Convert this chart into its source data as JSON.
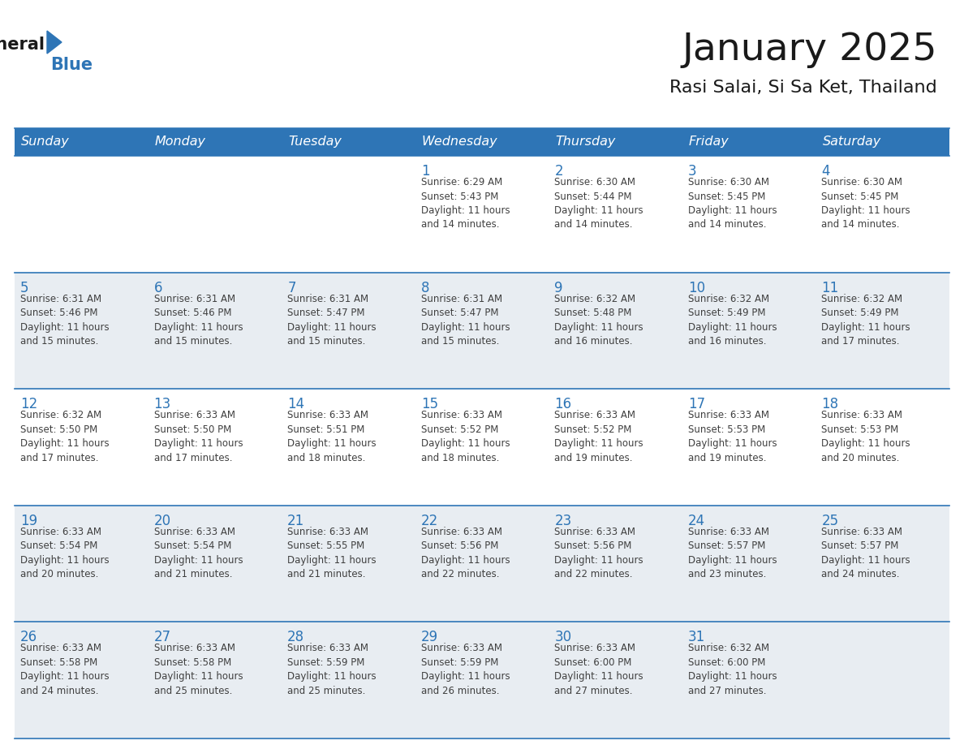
{
  "title": "January 2025",
  "subtitle": "Rasi Salai, Si Sa Ket, Thailand",
  "header_bg": "#2E75B6",
  "header_text_color": "#FFFFFF",
  "weekdays": [
    "Sunday",
    "Monday",
    "Tuesday",
    "Wednesday",
    "Thursday",
    "Friday",
    "Saturday"
  ],
  "row_bg_white": "#FFFFFF",
  "row_bg_gray": "#E8EDF2",
  "cell_border_color": "#2E75B6",
  "day_number_color": "#2E75B6",
  "info_text_color": "#404040",
  "title_color": "#1a1a1a",
  "subtitle_color": "#1a1a1a",
  "logo_triangle_color": "#2E75B6",
  "calendar_data": [
    [
      {
        "day": null,
        "info": ""
      },
      {
        "day": null,
        "info": ""
      },
      {
        "day": null,
        "info": ""
      },
      {
        "day": 1,
        "info": "Sunrise: 6:29 AM\nSunset: 5:43 PM\nDaylight: 11 hours\nand 14 minutes."
      },
      {
        "day": 2,
        "info": "Sunrise: 6:30 AM\nSunset: 5:44 PM\nDaylight: 11 hours\nand 14 minutes."
      },
      {
        "day": 3,
        "info": "Sunrise: 6:30 AM\nSunset: 5:45 PM\nDaylight: 11 hours\nand 14 minutes."
      },
      {
        "day": 4,
        "info": "Sunrise: 6:30 AM\nSunset: 5:45 PM\nDaylight: 11 hours\nand 14 minutes."
      }
    ],
    [
      {
        "day": 5,
        "info": "Sunrise: 6:31 AM\nSunset: 5:46 PM\nDaylight: 11 hours\nand 15 minutes."
      },
      {
        "day": 6,
        "info": "Sunrise: 6:31 AM\nSunset: 5:46 PM\nDaylight: 11 hours\nand 15 minutes."
      },
      {
        "day": 7,
        "info": "Sunrise: 6:31 AM\nSunset: 5:47 PM\nDaylight: 11 hours\nand 15 minutes."
      },
      {
        "day": 8,
        "info": "Sunrise: 6:31 AM\nSunset: 5:47 PM\nDaylight: 11 hours\nand 15 minutes."
      },
      {
        "day": 9,
        "info": "Sunrise: 6:32 AM\nSunset: 5:48 PM\nDaylight: 11 hours\nand 16 minutes."
      },
      {
        "day": 10,
        "info": "Sunrise: 6:32 AM\nSunset: 5:49 PM\nDaylight: 11 hours\nand 16 minutes."
      },
      {
        "day": 11,
        "info": "Sunrise: 6:32 AM\nSunset: 5:49 PM\nDaylight: 11 hours\nand 17 minutes."
      }
    ],
    [
      {
        "day": 12,
        "info": "Sunrise: 6:32 AM\nSunset: 5:50 PM\nDaylight: 11 hours\nand 17 minutes."
      },
      {
        "day": 13,
        "info": "Sunrise: 6:33 AM\nSunset: 5:50 PM\nDaylight: 11 hours\nand 17 minutes."
      },
      {
        "day": 14,
        "info": "Sunrise: 6:33 AM\nSunset: 5:51 PM\nDaylight: 11 hours\nand 18 minutes."
      },
      {
        "day": 15,
        "info": "Sunrise: 6:33 AM\nSunset: 5:52 PM\nDaylight: 11 hours\nand 18 minutes."
      },
      {
        "day": 16,
        "info": "Sunrise: 6:33 AM\nSunset: 5:52 PM\nDaylight: 11 hours\nand 19 minutes."
      },
      {
        "day": 17,
        "info": "Sunrise: 6:33 AM\nSunset: 5:53 PM\nDaylight: 11 hours\nand 19 minutes."
      },
      {
        "day": 18,
        "info": "Sunrise: 6:33 AM\nSunset: 5:53 PM\nDaylight: 11 hours\nand 20 minutes."
      }
    ],
    [
      {
        "day": 19,
        "info": "Sunrise: 6:33 AM\nSunset: 5:54 PM\nDaylight: 11 hours\nand 20 minutes."
      },
      {
        "day": 20,
        "info": "Sunrise: 6:33 AM\nSunset: 5:54 PM\nDaylight: 11 hours\nand 21 minutes."
      },
      {
        "day": 21,
        "info": "Sunrise: 6:33 AM\nSunset: 5:55 PM\nDaylight: 11 hours\nand 21 minutes."
      },
      {
        "day": 22,
        "info": "Sunrise: 6:33 AM\nSunset: 5:56 PM\nDaylight: 11 hours\nand 22 minutes."
      },
      {
        "day": 23,
        "info": "Sunrise: 6:33 AM\nSunset: 5:56 PM\nDaylight: 11 hours\nand 22 minutes."
      },
      {
        "day": 24,
        "info": "Sunrise: 6:33 AM\nSunset: 5:57 PM\nDaylight: 11 hours\nand 23 minutes."
      },
      {
        "day": 25,
        "info": "Sunrise: 6:33 AM\nSunset: 5:57 PM\nDaylight: 11 hours\nand 24 minutes."
      }
    ],
    [
      {
        "day": 26,
        "info": "Sunrise: 6:33 AM\nSunset: 5:58 PM\nDaylight: 11 hours\nand 24 minutes."
      },
      {
        "day": 27,
        "info": "Sunrise: 6:33 AM\nSunset: 5:58 PM\nDaylight: 11 hours\nand 25 minutes."
      },
      {
        "day": 28,
        "info": "Sunrise: 6:33 AM\nSunset: 5:59 PM\nDaylight: 11 hours\nand 25 minutes."
      },
      {
        "day": 29,
        "info": "Sunrise: 6:33 AM\nSunset: 5:59 PM\nDaylight: 11 hours\nand 26 minutes."
      },
      {
        "day": 30,
        "info": "Sunrise: 6:33 AM\nSunset: 6:00 PM\nDaylight: 11 hours\nand 27 minutes."
      },
      {
        "day": 31,
        "info": "Sunrise: 6:32 AM\nSunset: 6:00 PM\nDaylight: 11 hours\nand 27 minutes."
      },
      {
        "day": null,
        "info": ""
      }
    ]
  ]
}
